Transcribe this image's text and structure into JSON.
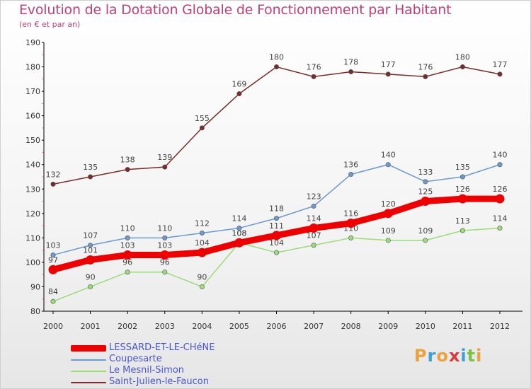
{
  "chart_data": {
    "type": "line",
    "title": "Evolution de la Dotation Globale de Fonctionnement par Habitant",
    "subtitle": "(en € et par an)",
    "xlabel": "",
    "ylabel": "",
    "ylim": [
      80,
      190
    ],
    "yticks": [
      80,
      90,
      100,
      110,
      120,
      130,
      140,
      150,
      160,
      170,
      180,
      190
    ],
    "grid": false,
    "legend_position": "bottom-left",
    "categories": [
      "2000",
      "2001",
      "2002",
      "2003",
      "2004",
      "2005",
      "2006",
      "2007",
      "2008",
      "2009",
      "2010",
      "2011",
      "2012"
    ],
    "series": [
      {
        "name": "LESSARD-ET-LE-CHéNE",
        "color": "#ee0000",
        "emphasis": true,
        "values": [
          97,
          101,
          103,
          103,
          104,
          108,
          111,
          114,
          116,
          120,
          125,
          126,
          126
        ]
      },
      {
        "name": "Coupesarte",
        "color": "#6a9ad0",
        "emphasis": false,
        "values": [
          103,
          107,
          110,
          110,
          112,
          114,
          118,
          123,
          136,
          140,
          133,
          135,
          140
        ]
      },
      {
        "name": "Le Mesnil-Simon",
        "color": "#99dd77",
        "emphasis": false,
        "values": [
          84,
          90,
          96,
          96,
          90,
          108,
          104,
          107,
          110,
          109,
          109,
          113,
          114
        ]
      },
      {
        "name": "Saint-Julien-le-Faucon",
        "color": "#7a2a2a",
        "emphasis": false,
        "values": [
          132,
          135,
          138,
          139,
          155,
          169,
          180,
          176,
          178,
          177,
          176,
          180,
          177
        ]
      }
    ]
  },
  "branding": {
    "logo_text": "Proxiti",
    "logo_letters": [
      {
        "char": "P",
        "color": "#e8a33c"
      },
      {
        "char": "r",
        "color": "#3aa0d8"
      },
      {
        "char": "o",
        "color": "#e8a33c"
      },
      {
        "char": "x",
        "color": "#d93a3a"
      },
      {
        "char": "i",
        "color": "#3aa0d8"
      },
      {
        "char": "t",
        "color": "#7cc242"
      },
      {
        "char": "i",
        "color": "#e8a33c"
      }
    ]
  }
}
